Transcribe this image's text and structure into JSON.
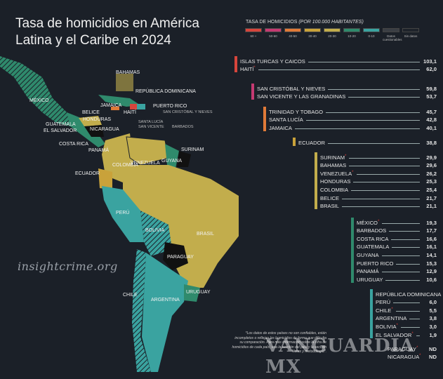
{
  "title": "Tasa de homicidios en América Latina y el Caribe en 2024",
  "brand": "insightcrime.org",
  "watermark": "VANGUARDIA MX",
  "legend": {
    "title": "TASA DE HOMICIDIOS",
    "title_unit": "(POR 100.000 HABITANTES)",
    "items": [
      {
        "label": "60 +",
        "color": "#d6453c"
      },
      {
        "label": "50-60",
        "color": "#c53a72"
      },
      {
        "label": "40-50",
        "color": "#e07a38"
      },
      {
        "label": "30-40",
        "color": "#c9a23a"
      },
      {
        "label": "20-30",
        "color": "#c2ad4c"
      },
      {
        "label": "10-20",
        "color": "#2f8a6c"
      },
      {
        "label": "0-10",
        "color": "#3aa3a0"
      },
      {
        "label": "Datos cuestionables",
        "color": "#3a3e44"
      },
      {
        "label": "Sin datos",
        "color": "#1f242b"
      }
    ]
  },
  "groups": [
    {
      "color": "#d6453c",
      "rows": [
        {
          "name": "ISLAS TURCAS Y CAICOS",
          "value": "103,1"
        },
        {
          "name": "HAITÍ",
          "value": "62,0",
          "flag": "*"
        }
      ]
    },
    {
      "color": "#c53a72",
      "rows": [
        {
          "name": "SAN CRISTÓBAL Y NIEVES",
          "value": "59,8"
        },
        {
          "name": "SAN VICENTE Y LAS GRANADINAS",
          "value": "53,7"
        }
      ]
    },
    {
      "color": "#e07a38",
      "rows": [
        {
          "name": "TRINIDAD Y TOBAGO",
          "value": "45,7"
        },
        {
          "name": "SANTA LUCÍA",
          "value": "42,8"
        },
        {
          "name": "JAMAICA",
          "value": "40,1"
        }
      ]
    },
    {
      "color": "#c9a23a",
      "rows": [
        {
          "name": "ECUADOR",
          "value": "38,8"
        }
      ]
    },
    {
      "color": "#c2ad4c",
      "rows": [
        {
          "name": "SURINAM",
          "value": "29,9",
          "flag": "*"
        },
        {
          "name": "BAHAMAS",
          "value": "29,6"
        },
        {
          "name": "VENEZUELA",
          "value": "26,2",
          "flag": "*"
        },
        {
          "name": "HONDURAS",
          "value": "25,3"
        },
        {
          "name": "COLOMBIA",
          "value": "25,4"
        },
        {
          "name": "BELICE",
          "value": "21,7"
        },
        {
          "name": "BRASIL",
          "value": "21,1"
        }
      ]
    },
    {
      "color": "#2f8a6c",
      "rows": [
        {
          "name": "MÉXICO",
          "value": "19,3",
          "flag": "*"
        },
        {
          "name": "BARBADOS",
          "value": "17,7"
        },
        {
          "name": "COSTA RICA",
          "value": "16,6"
        },
        {
          "name": "GUATEMALA",
          "value": "16,1"
        },
        {
          "name": "GUYANA",
          "value": "14,1"
        },
        {
          "name": "PUERTO RICO",
          "value": "15,3"
        },
        {
          "name": "PANAMÁ",
          "value": "12,9"
        },
        {
          "name": "URUGUAY",
          "value": "10,6"
        }
      ]
    },
    {
      "color": "#3aa3a0",
      "rows": [
        {
          "name": "REPÚBLICA DOMINICANA",
          "value": "9,6"
        },
        {
          "name": "PERÚ",
          "value": "6,0"
        },
        {
          "name": "CHILE",
          "value": "5,5",
          "flag": "*"
        },
        {
          "name": "ARGENTINA",
          "value": "3,8"
        },
        {
          "name": "BOLIVIA",
          "value": "3,0",
          "flag": "*"
        },
        {
          "name": "EL SALVADOR",
          "value": "1,9",
          "flag": "*"
        }
      ]
    },
    {
      "color": "#1b2028",
      "rows": [
        {
          "name": "PARAGUAY",
          "value": "ND",
          "flag": "*"
        },
        {
          "name": "NICARAGUA",
          "value": "ND",
          "flag": "*"
        }
      ]
    }
  ],
  "note": "*Los datos de estos países no son confiables, están incompletos o reflejan los homicidios de forma que dificulta su comparación. Para más información sobre la cifra de homicidios de cada país, vea la sección del país y la sección \"Notas y metodología\".",
  "map_labels": [
    "BAHAMAS",
    "REPÚBLICA DOMINICANA",
    "MÉXICO",
    "JAMAICA",
    "HAITÍ",
    "PUERTO RICO",
    "SAN CRISTÓBAL Y NIEVES",
    "BELICE",
    "HONDURAS",
    "GUATEMALA",
    "EL SALVADOR",
    "NICARAGUA",
    "SANTA LUCÍA",
    "SAN VICENTE",
    "BARBADOS",
    "COSTA RICA",
    "PANAMÁ",
    "VENEZUELA",
    "SURINAM",
    "COLOMBIA",
    "GUYANA",
    "ECUADOR",
    "PERÚ",
    "BOLIVIA",
    "BRASIL",
    "PARAGUAY",
    "CHILE",
    "ARGENTINA",
    "URUGUAY"
  ]
}
